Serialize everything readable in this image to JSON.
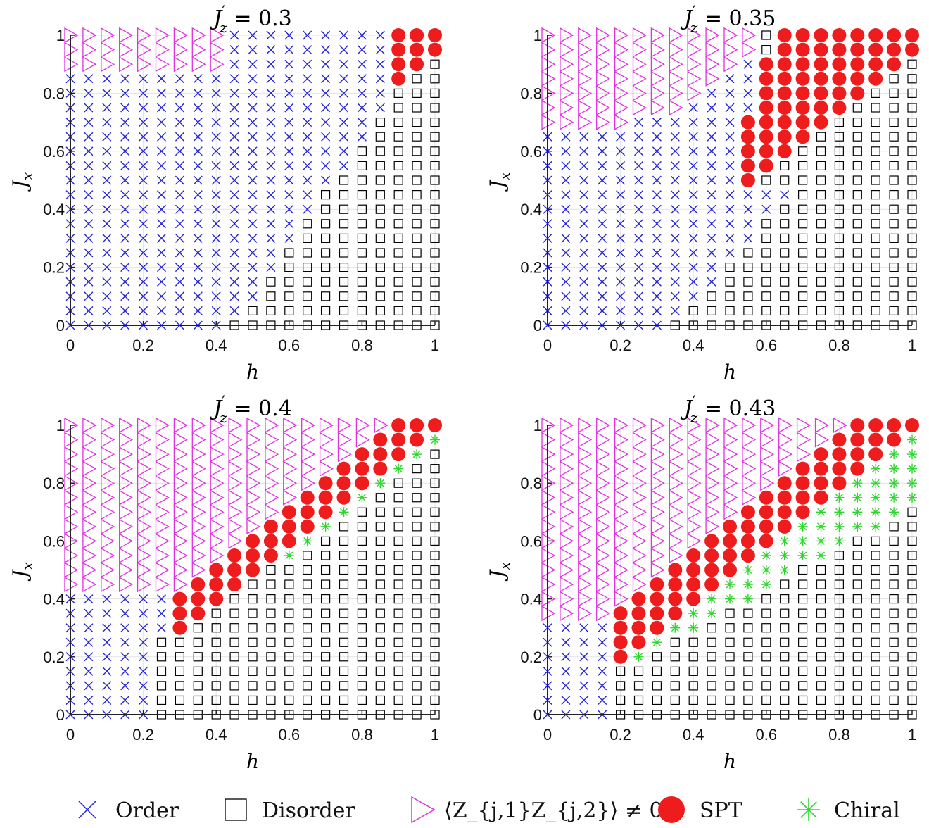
{
  "legend": [
    {
      "key": "order",
      "label": "Order",
      "marker": "x",
      "color": "#2323d6"
    },
    {
      "key": "disorder",
      "label": "Disorder",
      "marker": "square",
      "color": "#000000"
    },
    {
      "key": "zz",
      "label": "⟨Z_{j,1}Z_{j,2}⟩ ≠ 0",
      "marker": "triangle-right",
      "color": "#e030e0"
    },
    {
      "key": "spt",
      "label": "SPT",
      "marker": "circle",
      "color": "#ee1c1c"
    },
    {
      "key": "chiral",
      "label": "Chiral",
      "marker": "asterisk",
      "color": "#2ed62e"
    }
  ],
  "chart_data": [
    {
      "type": "scatter",
      "title": "J'_z = 0.3",
      "title_prime": "′",
      "title_sub": "z",
      "title_rest": " = 0.3",
      "xlabel": "h",
      "ylabel": "J",
      "ylabel_sub": "x",
      "xlim": [
        0,
        1
      ],
      "ylim": [
        0,
        1
      ],
      "xticks": [
        "0",
        "0.2",
        "0.4",
        "0.6",
        "0.8",
        "1"
      ],
      "yticks": [
        "0",
        "0.2",
        "0.4",
        "0.6",
        "0.8",
        "1"
      ],
      "grid": "on",
      "phase_rules": {
        "zz": {
          "h_max": 0.43,
          "jx_min": 0.88
        },
        "spt": {
          "h_min": 0.88,
          "jx_min": 0.86
        },
        "chiral": null,
        "disorder_boundary": [
          [
            0.43,
            0
          ],
          [
            1.0,
            1.0
          ]
        ]
      }
    },
    {
      "type": "scatter",
      "title": "J'_z = 0.35",
      "title_prime": "′",
      "title_sub": "z",
      "title_rest": " = 0.35",
      "xlabel": "h",
      "ylabel": "J",
      "ylabel_sub": "x",
      "xlim": [
        0,
        1
      ],
      "ylim": [
        0,
        1
      ],
      "xticks": [
        "0",
        "0.2",
        "0.4",
        "0.6",
        "0.8",
        "1"
      ],
      "yticks": [
        "0",
        "0.2",
        "0.4",
        "0.6",
        "0.8",
        "1"
      ],
      "grid": "on",
      "phase_rules": {
        "zz": {
          "h_max": 0.6,
          "jx_min": 0.68
        },
        "spt": {
          "polygon": [
            [
              0.55,
              0.5
            ],
            [
              0.55,
              0.7
            ],
            [
              0.65,
              0.9
            ],
            [
              0.65,
              1.0
            ],
            [
              1.0,
              1.0
            ],
            [
              1.0,
              0.95
            ],
            [
              0.95,
              0.9
            ],
            [
              0.85,
              0.8
            ],
            [
              0.75,
              0.7
            ],
            [
              0.65,
              0.6
            ],
            [
              0.55,
              0.5
            ]
          ]
        },
        "chiral": null,
        "disorder_boundary": [
          [
            0.33,
            0
          ],
          [
            0.7,
            0.5
          ]
        ]
      }
    },
    {
      "type": "scatter",
      "title": "J'_z = 0.4",
      "title_prime": "′",
      "title_sub": "z",
      "title_rest": " = 0.4",
      "xlabel": "h",
      "ylabel": "J",
      "ylabel_sub": "x",
      "xlim": [
        0,
        1
      ],
      "ylim": [
        0,
        1
      ],
      "xticks": [
        "0",
        "0.2",
        "0.4",
        "0.6",
        "0.8",
        "1"
      ],
      "yticks": [
        "0",
        "0.2",
        "0.4",
        "0.6",
        "0.8",
        "1"
      ],
      "grid": "on",
      "phase_rules": {
        "zz": {
          "diag_offset": 0.1
        },
        "spt": {
          "band": [
            0.3,
            1.0
          ]
        },
        "chiral": {
          "line": true
        },
        "disorder_boundary": [
          [
            0.22,
            0
          ],
          [
            0.3,
            0.3
          ]
        ]
      }
    },
    {
      "type": "scatter",
      "title": "J'_z = 0.43",
      "title_prime": "′",
      "title_sub": "z",
      "title_rest": " = 0.43",
      "xlabel": "h",
      "ylabel": "J",
      "ylabel_sub": "x",
      "xlim": [
        0,
        1
      ],
      "ylim": [
        0,
        1
      ],
      "xticks": [
        "0",
        "0.2",
        "0.4",
        "0.6",
        "0.8",
        "1"
      ],
      "yticks": [
        "0",
        "0.2",
        "0.4",
        "0.6",
        "0.8",
        "1"
      ],
      "grid": "on",
      "phase_rules": {
        "zz": {
          "diag_offset": 0.2
        },
        "spt": {
          "band": [
            0.2,
            1.0
          ]
        },
        "chiral": {
          "wedge": true
        },
        "disorder_boundary": [
          [
            0.15,
            0
          ],
          [
            0.2,
            0.2
          ]
        ]
      }
    }
  ]
}
